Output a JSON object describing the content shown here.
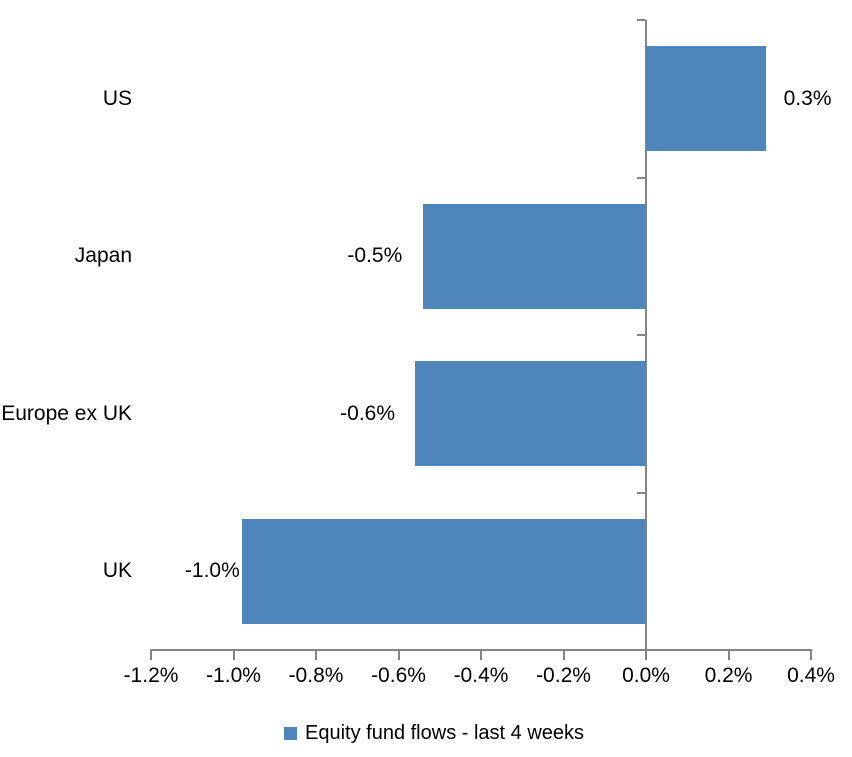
{
  "chart_data": {
    "type": "bar",
    "orientation": "horizontal",
    "title": "",
    "categories": [
      "US",
      "Japan",
      "Europe ex UK",
      "UK"
    ],
    "values": [
      0.3,
      -0.5,
      -0.6,
      -1.0
    ],
    "unit": "%",
    "values_precise_pct": [
      0.29,
      -0.54,
      -0.56,
      -0.98
    ],
    "data_labels": [
      "0.3%",
      "-0.5%",
      "-0.6%",
      "-1.0%"
    ],
    "series": [
      {
        "name": "Equity fund flows - last 4 weeks",
        "values": [
          0.3,
          -0.5,
          -0.6,
          -1.0
        ]
      }
    ],
    "x_axis": {
      "min": -1.2,
      "max": 0.4,
      "step": 0.2,
      "tick_labels": [
        "-1.2%",
        "-1.0%",
        "-0.8%",
        "-0.6%",
        "-0.4%",
        "-0.2%",
        "0.0%",
        "0.2%",
        "0.4%"
      ]
    },
    "grid": false,
    "legend_position": "bottom",
    "colors": {
      "bar": "#4E86BC",
      "axis": "#848484",
      "text": "#000000",
      "background": "#FFFFFF"
    }
  }
}
